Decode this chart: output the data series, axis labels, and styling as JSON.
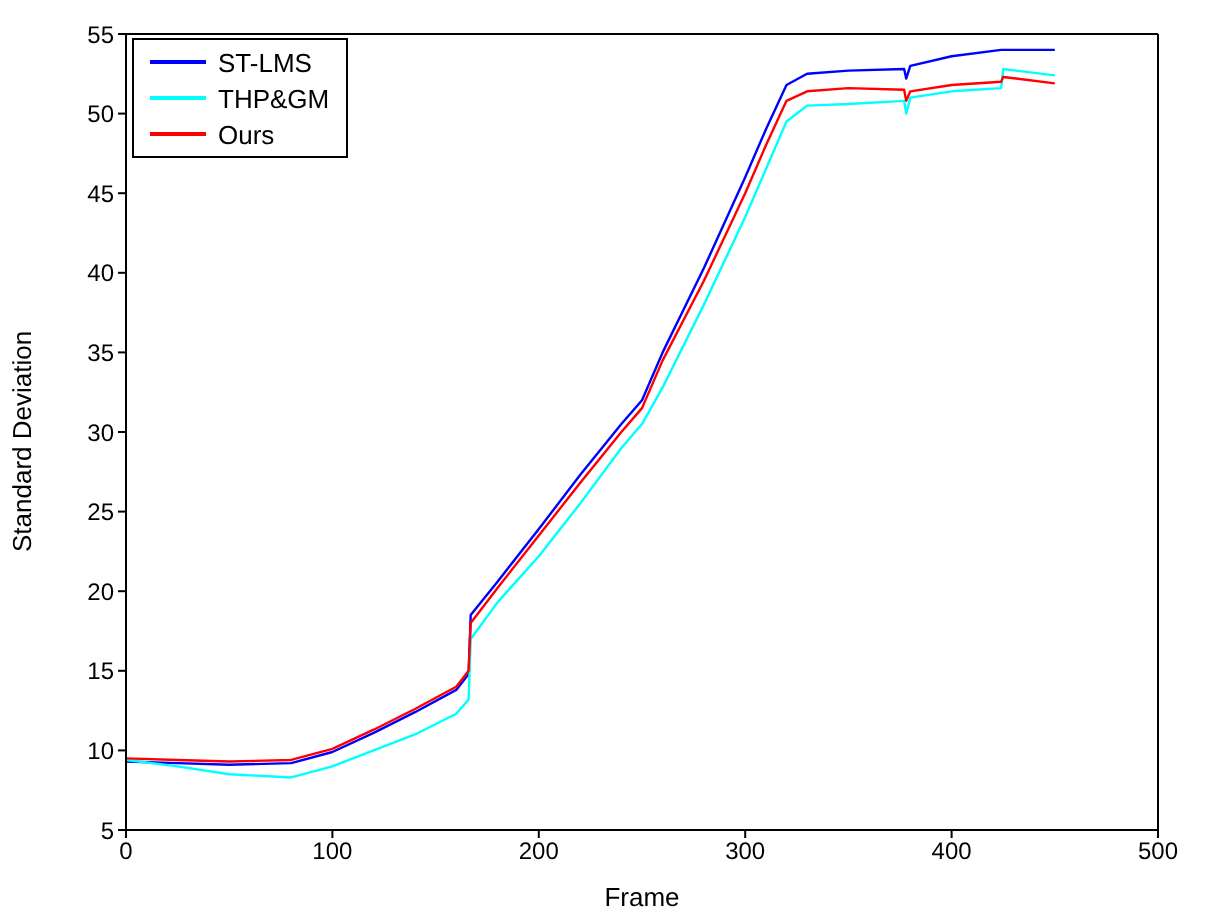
{
  "chart_data": {
    "type": "line",
    "xlabel": "Frame",
    "ylabel": "Standard Deviation",
    "x": [
      0,
      25,
      50,
      80,
      100,
      120,
      140,
      160,
      166,
      167,
      180,
      200,
      220,
      240,
      250,
      260,
      280,
      300,
      310,
      320,
      330,
      350,
      377,
      378,
      380,
      400,
      424,
      425,
      450
    ],
    "series": [
      {
        "name": "ST-LMS",
        "color": "#0000ff",
        "values": [
          9.3,
          9.2,
          9.1,
          9.2,
          9.9,
          11.1,
          12.4,
          13.8,
          14.8,
          18.5,
          20.6,
          23.9,
          27.3,
          30.5,
          32.0,
          35.0,
          40.3,
          46.0,
          49.0,
          51.8,
          52.5,
          52.7,
          52.8,
          52.2,
          53.0,
          53.6,
          54.0,
          54.0,
          54.0
        ]
      },
      {
        "name": "THP&GM",
        "color": "#00ffff",
        "values": [
          9.4,
          9.0,
          8.5,
          8.3,
          9.0,
          10.0,
          11.0,
          12.3,
          13.2,
          17.0,
          19.3,
          22.2,
          25.5,
          29.0,
          30.5,
          32.8,
          38.0,
          43.5,
          46.5,
          49.5,
          50.5,
          50.6,
          50.8,
          50.0,
          51.0,
          51.4,
          51.6,
          52.8,
          52.4
        ]
      },
      {
        "name": "Ours",
        "color": "#ff0000",
        "values": [
          9.5,
          9.4,
          9.3,
          9.4,
          10.1,
          11.3,
          12.6,
          14.0,
          15.0,
          18.0,
          20.2,
          23.5,
          26.8,
          30.0,
          31.5,
          34.5,
          39.5,
          45.0,
          48.0,
          50.8,
          51.4,
          51.6,
          51.5,
          50.8,
          51.4,
          51.8,
          52.0,
          52.3,
          51.9
        ]
      }
    ],
    "xlim": [
      0,
      500
    ],
    "xticks": [
      0,
      100,
      200,
      300,
      400,
      500
    ],
    "ylim": [
      5,
      55
    ],
    "yticks": [
      5,
      10,
      15,
      20,
      25,
      30,
      35,
      40,
      45,
      50,
      55
    ],
    "grid": false,
    "legend": "top left",
    "marker": "none",
    "line_style": "solid"
  }
}
